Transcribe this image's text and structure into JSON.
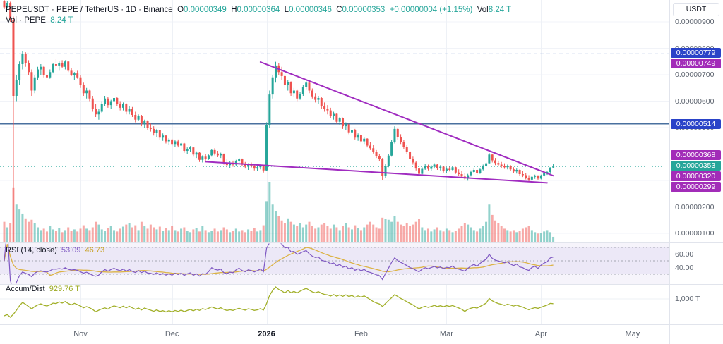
{
  "header": {
    "symbol_line": "PEPEUSDT · PEPE / TetherUS · 1D · Binance",
    "o_label": "O",
    "o": "0.00000349",
    "h_label": "H",
    "h": "0.00000364",
    "l_label": "L",
    "l": "0.00000346",
    "c_label": "C",
    "c": "0.00000353",
    "change": "+0.00000004 (+1.15%)",
    "vol_label": "Vol",
    "vol_value": "8.24 T",
    "vol_row_label": "Vol · PEPE",
    "vol_row_value": "8.24 T"
  },
  "legends": {
    "rsi_label": "RSI (14, close)",
    "rsi_value": "53.09",
    "rsi_ma_value": "46.73",
    "ad_label": "Accum/Dist",
    "ad_value": "929.76 T"
  },
  "axes": {
    "unit_button": "USDT",
    "price_ticks": [
      "0.00000900",
      "0.00000800",
      "0.00000700",
      "0.00000600",
      "0.00000500",
      "0.00000400",
      "0.00000200",
      "0.00000100"
    ],
    "rsi_ticks": [
      {
        "label": "60.00",
        "value": 60
      },
      {
        "label": "40.00",
        "value": 40
      }
    ],
    "ad_tick": "1,000 T"
  },
  "colors": {
    "up": "#26a69a",
    "down": "#ef5350",
    "vol_up": "rgba(38,166,154,0.5)",
    "vol_down": "rgba(239,83,80,0.5)",
    "grid": "#f1f3f8",
    "vgrid": "#eef1f6",
    "separator": "#e1e4ec",
    "dashed_level": "#6584c4",
    "solid_level": "#49709f",
    "current_price": "#26a69a",
    "trendline": "#a02cc0",
    "rsi_line": "#7e57c2",
    "rsi_ma_line": "#dcb345",
    "rsi_bg": "#f6f4fb",
    "rsi_band": "#ece8f7",
    "rsi_dash": "#a3a6b0",
    "ad_line": "#a2b02a",
    "tag_blue": "#2a43c8",
    "tag_purple": "#a22cb8",
    "tag_teal": "#26a69a"
  },
  "chart_data": {
    "type": "candlestick",
    "symbol": "PEPEUSDT",
    "interval": "1D",
    "exchange": "Binance",
    "price_unit": "1e-8 USDT",
    "volume_unit": "T",
    "ylim_1e8": [
      63,
      983
    ],
    "time_axis": {
      "months": [
        {
          "label": "Nov",
          "day": 25
        },
        {
          "label": "Dec",
          "day": 55
        },
        {
          "label": "2026",
          "day": 86,
          "bold": true
        },
        {
          "label": "Feb",
          "day": 117
        },
        {
          "label": "Mar",
          "day": 145
        },
        {
          "label": "Apr",
          "day": 176
        },
        {
          "label": "May",
          "day": 206
        }
      ]
    },
    "levels": [
      {
        "price": 779,
        "label": "0.00000779",
        "line": "dashed",
        "tag": "blue"
      },
      {
        "price": 749,
        "label": "0.00000749",
        "line": "none",
        "tag": "purple"
      },
      {
        "price": 514,
        "label": "0.00000514",
        "line": "solid",
        "tag": "blue"
      },
      {
        "price": 368,
        "label": "0.00000368",
        "line": "none",
        "tag": "purple"
      },
      {
        "price": 353,
        "label": "0.00000353",
        "line": "dotted",
        "tag": "teal"
      },
      {
        "price": 320,
        "label": "0.00000320",
        "line": "none",
        "tag": "purple"
      },
      {
        "price": 299,
        "label": "0.00000299",
        "line": "none",
        "tag": "purple"
      }
    ],
    "trendlines": [
      {
        "x1_day": 84,
        "price1": 748,
        "x2_day": 180,
        "price2": 318
      },
      {
        "x1_day": 66,
        "price1": 371,
        "x2_day": 178,
        "price2": 291
      }
    ],
    "indicators": {
      "rsi": {
        "period": 14,
        "source": "close",
        "bands": [
          70,
          50,
          30
        ],
        "last": 53.09,
        "ma_last": 46.73
      },
      "accum_dist": {
        "last_label": "929.76 T"
      }
    },
    "candles_ohlcv_1e8": [
      [
        978,
        990,
        948,
        955,
        30
      ],
      [
        955,
        980,
        950,
        972,
        22
      ],
      [
        972,
        976,
        900,
        908,
        28
      ],
      [
        908,
        920,
        40,
        620,
        80
      ],
      [
        620,
        700,
        600,
        680,
        55
      ],
      [
        680,
        750,
        660,
        740,
        48
      ],
      [
        740,
        790,
        720,
        779,
        42
      ],
      [
        779,
        785,
        730,
        745,
        35
      ],
      [
        745,
        755,
        700,
        710,
        30
      ],
      [
        710,
        720,
        620,
        640,
        33
      ],
      [
        640,
        700,
        630,
        690,
        28
      ],
      [
        690,
        730,
        680,
        720,
        22
      ],
      [
        720,
        740,
        700,
        730,
        18
      ],
      [
        730,
        735,
        690,
        700,
        20
      ],
      [
        700,
        715,
        680,
        690,
        16
      ],
      [
        690,
        720,
        685,
        710,
        24
      ],
      [
        710,
        745,
        705,
        740,
        19
      ],
      [
        740,
        760,
        720,
        735,
        17
      ],
      [
        735,
        750,
        715,
        745,
        21
      ],
      [
        745,
        755,
        725,
        730,
        15
      ],
      [
        730,
        755,
        720,
        750,
        18
      ],
      [
        750,
        752,
        710,
        715,
        22
      ],
      [
        715,
        725,
        695,
        700,
        17
      ],
      [
        700,
        710,
        680,
        705,
        19
      ],
      [
        705,
        715,
        685,
        690,
        16
      ],
      [
        690,
        700,
        650,
        660,
        20
      ],
      [
        660,
        670,
        620,
        630,
        25
      ],
      [
        630,
        650,
        610,
        640,
        20
      ],
      [
        640,
        645,
        600,
        610,
        18
      ],
      [
        610,
        620,
        560,
        570,
        22
      ],
      [
        570,
        590,
        540,
        550,
        30
      ],
      [
        550,
        570,
        530,
        560,
        26
      ],
      [
        560,
        600,
        555,
        590,
        19
      ],
      [
        590,
        620,
        580,
        610,
        17
      ],
      [
        610,
        615,
        575,
        585,
        21
      ],
      [
        585,
        605,
        570,
        600,
        24
      ],
      [
        600,
        618,
        590,
        612,
        18
      ],
      [
        612,
        615,
        580,
        590,
        16
      ],
      [
        590,
        600,
        565,
        575,
        20
      ],
      [
        575,
        595,
        565,
        588,
        23
      ],
      [
        588,
        592,
        550,
        560,
        26
      ],
      [
        560,
        580,
        550,
        572,
        28
      ],
      [
        572,
        578,
        540,
        548,
        22
      ],
      [
        548,
        560,
        520,
        530,
        25
      ],
      [
        530,
        550,
        525,
        545,
        18
      ],
      [
        545,
        548,
        505,
        515,
        30
      ],
      [
        515,
        530,
        500,
        525,
        24
      ],
      [
        525,
        528,
        490,
        500,
        20
      ],
      [
        500,
        515,
        485,
        495,
        26
      ],
      [
        495,
        505,
        470,
        480,
        22
      ],
      [
        480,
        495,
        465,
        490,
        19
      ],
      [
        490,
        492,
        455,
        462,
        23
      ],
      [
        462,
        478,
        450,
        470,
        17
      ],
      [
        470,
        473,
        440,
        448,
        21
      ],
      [
        448,
        460,
        435,
        455,
        18
      ],
      [
        455,
        458,
        430,
        438,
        24
      ],
      [
        438,
        452,
        428,
        448,
        18
      ],
      [
        448,
        455,
        425,
        432,
        16
      ],
      [
        432,
        445,
        420,
        440,
        20
      ],
      [
        440,
        442,
        405,
        412,
        22
      ],
      [
        412,
        425,
        400,
        420,
        17
      ],
      [
        420,
        430,
        408,
        425,
        15
      ],
      [
        425,
        428,
        390,
        398,
        19
      ],
      [
        398,
        410,
        385,
        405,
        21
      ],
      [
        405,
        408,
        370,
        378,
        16
      ],
      [
        378,
        395,
        368,
        390,
        24
      ],
      [
        390,
        400,
        375,
        382,
        18
      ],
      [
        382,
        398,
        378,
        395,
        15
      ],
      [
        395,
        420,
        390,
        415,
        17
      ],
      [
        415,
        422,
        395,
        402,
        20
      ],
      [
        402,
        412,
        388,
        395,
        16
      ],
      [
        395,
        405,
        385,
        400,
        18
      ],
      [
        400,
        402,
        360,
        368,
        22
      ],
      [
        368,
        380,
        350,
        358,
        19
      ],
      [
        358,
        372,
        348,
        365,
        15
      ],
      [
        365,
        375,
        352,
        360,
        17
      ],
      [
        360,
        378,
        355,
        372,
        20
      ],
      [
        372,
        385,
        365,
        380,
        16
      ],
      [
        380,
        383,
        355,
        362,
        18
      ],
      [
        362,
        370,
        345,
        352,
        15
      ],
      [
        352,
        365,
        340,
        360,
        19
      ],
      [
        360,
        368,
        348,
        355,
        17
      ],
      [
        355,
        362,
        338,
        345,
        21
      ],
      [
        345,
        358,
        335,
        350,
        16
      ],
      [
        350,
        360,
        342,
        356,
        18
      ],
      [
        356,
        360,
        330,
        338,
        25
      ],
      [
        338,
        520,
        335,
        510,
        60
      ],
      [
        510,
        640,
        500,
        625,
        88
      ],
      [
        625,
        700,
        610,
        690,
        55
      ],
      [
        690,
        749,
        670,
        735,
        45
      ],
      [
        735,
        745,
        700,
        710,
        38
      ],
      [
        710,
        730,
        680,
        695,
        32
      ],
      [
        695,
        700,
        650,
        660,
        28
      ],
      [
        660,
        680,
        640,
        672,
        35
      ],
      [
        672,
        675,
        620,
        630,
        30
      ],
      [
        630,
        650,
        615,
        640,
        26
      ],
      [
        640,
        645,
        600,
        610,
        24
      ],
      [
        610,
        635,
        605,
        628,
        28
      ],
      [
        628,
        660,
        620,
        652,
        22
      ],
      [
        652,
        680,
        645,
        670,
        26
      ],
      [
        670,
        672,
        630,
        640,
        30
      ],
      [
        640,
        648,
        610,
        618,
        24
      ],
      [
        618,
        630,
        595,
        605,
        20
      ],
      [
        605,
        620,
        590,
        612,
        22
      ],
      [
        612,
        615,
        570,
        580,
        26
      ],
      [
        580,
        595,
        560,
        572,
        28
      ],
      [
        572,
        585,
        550,
        565,
        24
      ],
      [
        565,
        575,
        535,
        545,
        20
      ],
      [
        545,
        560,
        530,
        552,
        26
      ],
      [
        552,
        555,
        515,
        522,
        22
      ],
      [
        522,
        540,
        510,
        535,
        18
      ],
      [
        535,
        538,
        495,
        505,
        24
      ],
      [
        505,
        520,
        490,
        512,
        28
      ],
      [
        512,
        515,
        475,
        482,
        22
      ],
      [
        482,
        500,
        470,
        492,
        19
      ],
      [
        492,
        495,
        455,
        462,
        25
      ],
      [
        462,
        478,
        450,
        472,
        21
      ],
      [
        472,
        475,
        440,
        448,
        18
      ],
      [
        448,
        465,
        438,
        458,
        22
      ],
      [
        458,
        460,
        425,
        432,
        26
      ],
      [
        432,
        445,
        415,
        422,
        30
      ],
      [
        422,
        435,
        402,
        408,
        26
      ],
      [
        408,
        415,
        385,
        392,
        22
      ],
      [
        392,
        400,
        372,
        380,
        20
      ],
      [
        380,
        385,
        300,
        318,
        36
      ],
      [
        318,
        362,
        310,
        355,
        34
      ],
      [
        355,
        400,
        350,
        394,
        33
      ],
      [
        394,
        452,
        390,
        445,
        30
      ],
      [
        445,
        505,
        440,
        495,
        38
      ],
      [
        495,
        498,
        455,
        465,
        30
      ],
      [
        465,
        475,
        438,
        445,
        26
      ],
      [
        445,
        452,
        420,
        428,
        24
      ],
      [
        428,
        435,
        400,
        408,
        28
      ],
      [
        408,
        412,
        375,
        382,
        24
      ],
      [
        382,
        390,
        360,
        368,
        26
      ],
      [
        368,
        372,
        338,
        345,
        30
      ],
      [
        345,
        352,
        315,
        325,
        34
      ],
      [
        325,
        350,
        320,
        344,
        22
      ],
      [
        344,
        362,
        340,
        356,
        18
      ],
      [
        356,
        360,
        338,
        344,
        20
      ],
      [
        344,
        358,
        336,
        352,
        16
      ],
      [
        352,
        365,
        345,
        360,
        19
      ],
      [
        360,
        362,
        340,
        346,
        22
      ],
      [
        346,
        358,
        338,
        352,
        18
      ],
      [
        352,
        355,
        330,
        336,
        16
      ],
      [
        336,
        350,
        328,
        344,
        20
      ],
      [
        344,
        352,
        334,
        340,
        18
      ],
      [
        340,
        355,
        336,
        350,
        15
      ],
      [
        350,
        352,
        325,
        330,
        17
      ],
      [
        330,
        342,
        318,
        324,
        20
      ],
      [
        324,
        335,
        308,
        315,
        24
      ],
      [
        315,
        328,
        302,
        307,
        28
      ],
      [
        307,
        325,
        299,
        320,
        26
      ],
      [
        320,
        338,
        315,
        332,
        22
      ],
      [
        332,
        345,
        328,
        340,
        18
      ],
      [
        340,
        342,
        322,
        328,
        16
      ],
      [
        328,
        345,
        325,
        342,
        20
      ],
      [
        342,
        360,
        338,
        355,
        24
      ],
      [
        355,
        370,
        350,
        365,
        30
      ],
      [
        365,
        404,
        362,
        398,
        55
      ],
      [
        398,
        400,
        368,
        376,
        40
      ],
      [
        376,
        385,
        358,
        366,
        32
      ],
      [
        366,
        375,
        353,
        360,
        28
      ],
      [
        360,
        370,
        348,
        356,
        24
      ],
      [
        356,
        365,
        344,
        350,
        20
      ],
      [
        350,
        360,
        342,
        356,
        18
      ],
      [
        356,
        358,
        336,
        342,
        16
      ],
      [
        342,
        350,
        328,
        334,
        18
      ],
      [
        334,
        345,
        326,
        340,
        15
      ],
      [
        340,
        342,
        318,
        324,
        17
      ],
      [
        324,
        335,
        313,
        320,
        20
      ],
      [
        320,
        328,
        304,
        309,
        22
      ],
      [
        309,
        320,
        296,
        303,
        24
      ],
      [
        303,
        318,
        299,
        314,
        18
      ],
      [
        314,
        322,
        306,
        318,
        15
      ],
      [
        318,
        320,
        302,
        307,
        13
      ],
      [
        307,
        322,
        304,
        319,
        14
      ],
      [
        319,
        330,
        315,
        327,
        16
      ],
      [
        327,
        336,
        321,
        332,
        18
      ],
      [
        332,
        350,
        325,
        349,
        15
      ],
      [
        349,
        364,
        346,
        353,
        8.24
      ]
    ]
  }
}
